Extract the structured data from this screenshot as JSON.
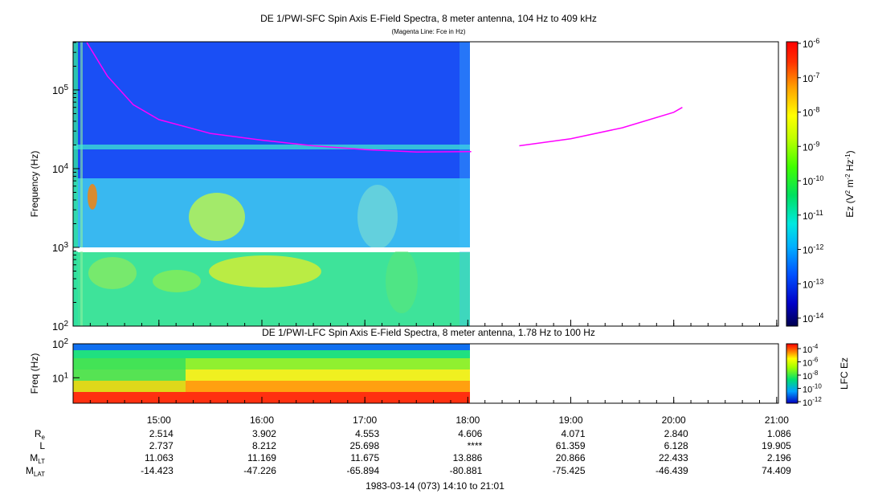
{
  "top_panel": {
    "title": "DE 1/PWI-SFC  Spin Axis E-Field Spectra, 8 meter antenna, 104 Hz to 409 kHz",
    "subtitle": "(Magenta Line: Fce in Hz)",
    "ylabel": "Frequency (Hz)",
    "colorbar_label": "Ez (V² m⁻² Hz⁻¹)",
    "colorbar_label_parts": {
      "base": "Ez (V",
      "sup1": "2",
      "mid": " m",
      "sup2": "-2",
      "mid2": " Hz",
      "sup3": "-1",
      "end": ")"
    },
    "y_ticks": [
      {
        "base": "10",
        "exp": "2"
      },
      {
        "base": "10",
        "exp": "3"
      },
      {
        "base": "10",
        "exp": "4"
      },
      {
        "base": "10",
        "exp": "5"
      }
    ],
    "colorbar_ticks": [
      {
        "base": "10",
        "exp": "-6"
      },
      {
        "base": "10",
        "exp": "-7"
      },
      {
        "base": "10",
        "exp": "-8"
      },
      {
        "base": "10",
        "exp": "-9"
      },
      {
        "base": "10",
        "exp": "-10"
      },
      {
        "base": "10",
        "exp": "-11"
      },
      {
        "base": "10",
        "exp": "-12"
      },
      {
        "base": "10",
        "exp": "-13"
      },
      {
        "base": "10",
        "exp": "-14"
      }
    ]
  },
  "bottom_panel": {
    "title": "DE 1/PWI-LFC  Spin Axis E-Field Spectra, 8 meter antenna, 1.78 Hz to 100 Hz",
    "ylabel": "Freq (Hz)",
    "colorbar_label": "LFC Ez",
    "y_ticks": [
      {
        "base": "10",
        "exp": "1"
      },
      {
        "base": "10",
        "exp": "2"
      }
    ],
    "colorbar_ticks": [
      {
        "base": "10",
        "exp": "-4"
      },
      {
        "base": "10",
        "exp": "-6"
      },
      {
        "base": "10",
        "exp": "-8"
      },
      {
        "base": "10",
        "exp": "-10"
      },
      {
        "base": "10",
        "exp": "-12"
      }
    ]
  },
  "x_axis": {
    "tick_labels": [
      "15:00",
      "16:00",
      "17:00",
      "18:00",
      "19:00",
      "20:00",
      "21:00"
    ]
  },
  "ephemeris": {
    "rows": [
      {
        "label": "R",
        "sub": "e",
        "values": [
          "2.514",
          "3.902",
          "4.553",
          "4.606",
          "4.071",
          "2.840",
          "1.086"
        ]
      },
      {
        "label": "L",
        "sub": "",
        "values": [
          "2.737",
          "8.212",
          "25.698",
          "****",
          "61.359",
          "6.128",
          "19.905"
        ]
      },
      {
        "label": "M",
        "sub": "LT",
        "values": [
          "11.063",
          "11.169",
          "11.675",
          "13.886",
          "20.866",
          "22.433",
          "2.196"
        ]
      },
      {
        "label": "M",
        "sub": "LAT",
        "values": [
          "-14.423",
          "-47.226",
          "-65.894",
          "-80.881",
          "-75.425",
          "-46.439",
          "74.409"
        ]
      }
    ]
  },
  "footer": "1983-03-14 (073) 14:10 to 21:01",
  "colors": {
    "magenta_line": "#ff00ff",
    "axis": "#000000",
    "background": "#ffffff"
  },
  "chart_data": {
    "type": "heatmap",
    "title": "DE 1/PWI-SFC  Spin Axis E-Field Spectra, 8 meter antenna, 104 Hz to 409 kHz",
    "x_range": [
      "14:10",
      "21:01"
    ],
    "data_coverage": [
      "14:10",
      "18:02"
    ],
    "y_range_hz": [
      100,
      409000
    ],
    "y_scale": "log",
    "colorbar_range": [
      1e-14,
      1e-06
    ],
    "fce_line_hz": [
      {
        "t": "14:18",
        "f": 400000
      },
      {
        "t": "14:30",
        "f": 150000
      },
      {
        "t": "14:45",
        "f": 65000
      },
      {
        "t": "15:00",
        "f": 42000
      },
      {
        "t": "15:30",
        "f": 28000
      },
      {
        "t": "16:00",
        "f": 23000
      },
      {
        "t": "16:30",
        "f": 19500
      },
      {
        "t": "17:00",
        "f": 17500
      },
      {
        "t": "17:30",
        "f": 16300
      },
      {
        "t": "18:02",
        "f": 16500
      },
      {
        "t": "18:30",
        "f": 19500
      },
      {
        "t": "19:00",
        "f": 24000
      },
      {
        "t": "19:30",
        "f": 33000
      },
      {
        "t": "20:00",
        "f": 52000
      },
      {
        "t": "20:05",
        "f": 60000
      }
    ],
    "lfc": {
      "title": "DE 1/PWI-LFC  Spin Axis E-Field Spectra, 8 meter antenna, 1.78 Hz to 100 Hz",
      "y_range_hz": [
        1.78,
        100
      ],
      "y_scale": "log",
      "colorbar_range": [
        1e-12,
        0.0001
      ]
    }
  }
}
